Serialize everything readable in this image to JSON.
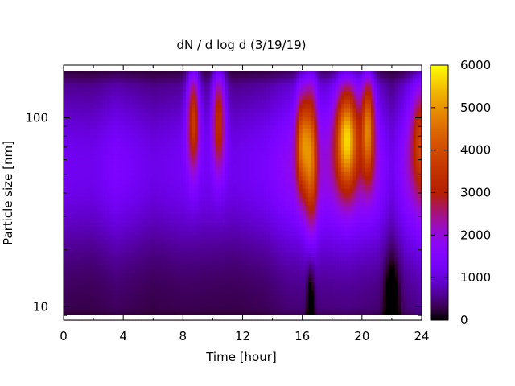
{
  "chart_data": {
    "type": "heatmap",
    "title": "dN / d log d (3/19/19)",
    "xlabel": "Time [hour]",
    "ylabel": "Particle size [nm]",
    "xlim": [
      0,
      24
    ],
    "ylim": [
      8.5,
      190
    ],
    "y_scale": "log",
    "x_ticks": [
      "0",
      "4",
      "8",
      "12",
      "16",
      "20",
      "24"
    ],
    "x_tick_values": [
      0,
      4,
      8,
      12,
      16,
      20,
      24
    ],
    "y_ticks": [
      "10",
      "100"
    ],
    "y_tick_values": [
      10,
      100
    ],
    "colorbar": {
      "min": 0,
      "max": 6000,
      "ticks": [
        "0",
        "1000",
        "2000",
        "3000",
        "4000",
        "5000",
        "6000"
      ],
      "tick_values": [
        0,
        1000,
        2000,
        3000,
        4000,
        5000,
        6000
      ],
      "palette": "black-purple-red-orange-yellow"
    },
    "background_level": [
      {
        "hour": 0,
        "value": 1200
      },
      {
        "hour": 2,
        "value": 1150
      },
      {
        "hour": 3.5,
        "value": 1450
      },
      {
        "hour": 6,
        "value": 1100
      },
      {
        "hour": 8,
        "value": 1250
      },
      {
        "hour": 11.5,
        "value": 1150
      },
      {
        "hour": 13.5,
        "value": 1350
      },
      {
        "hour": 15,
        "value": 1800
      },
      {
        "hour": 17,
        "value": 1900
      },
      {
        "hour": 19,
        "value": 2050
      },
      {
        "hour": 21,
        "value": 1800
      },
      {
        "hour": 22,
        "value": 1100
      },
      {
        "hour": 23,
        "value": 1900
      },
      {
        "hour": 24,
        "value": 2400
      }
    ],
    "peaks": [
      {
        "hour": 8.7,
        "size_nm": 100,
        "value": 3900
      },
      {
        "hour": 10.4,
        "size_nm": 100,
        "value": 3700
      },
      {
        "hour": 16.0,
        "size_nm": 75,
        "value": 4000
      },
      {
        "hour": 16.6,
        "size_nm": 65,
        "value": 3900
      },
      {
        "hour": 19.0,
        "size_nm": 80,
        "value": 5100
      },
      {
        "hour": 20.4,
        "size_nm": 90,
        "value": 4400
      },
      {
        "hour": 23.9,
        "size_nm": 80,
        "value": 2900
      }
    ]
  }
}
